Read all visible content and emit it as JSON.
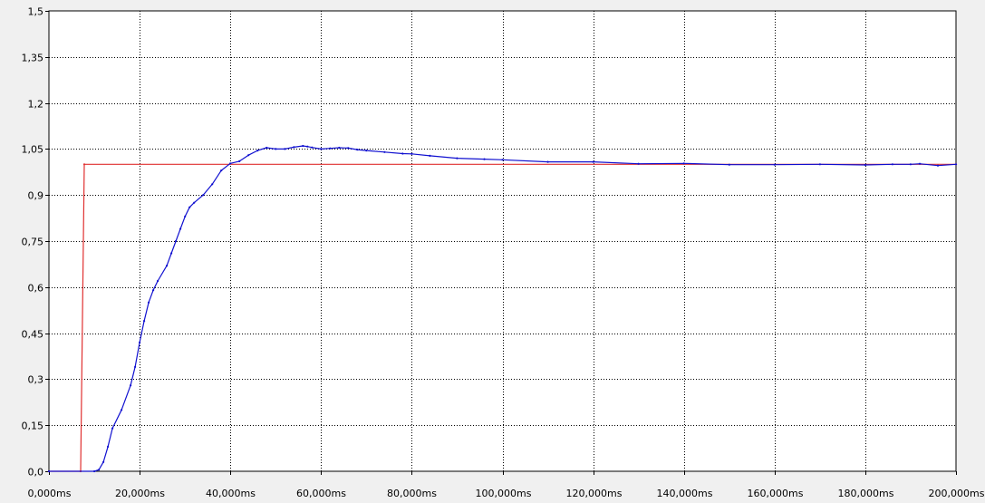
{
  "chart_data": {
    "type": "line",
    "title": "",
    "xlabel": "",
    "ylabel": "",
    "xlim": [
      0,
      200
    ],
    "ylim": [
      0,
      1.5
    ],
    "grid": true,
    "x_tick_labels": [
      "0,000ms",
      "20,000ms",
      "40,000ms",
      "60,000ms",
      "80,000ms",
      "100,000ms",
      "120,000ms",
      "140,000ms",
      "160,000ms",
      "180,000ms",
      "200,000ms"
    ],
    "x_tick_values": [
      0,
      20,
      40,
      60,
      80,
      100,
      120,
      140,
      160,
      180,
      200
    ],
    "y_tick_labels": [
      "0,0",
      "0,15",
      "0,3",
      "0,45",
      "0,6",
      "0,75",
      "0,9",
      "1,05",
      "1,2",
      "1,35",
      "1,5"
    ],
    "y_tick_values": [
      0,
      0.15,
      0.3,
      0.45,
      0.6,
      0.75,
      0.9,
      1.05,
      1.2,
      1.35,
      1.5
    ],
    "series": [
      {
        "color": "#e03030",
        "x": [
          0,
          7,
          7.8,
          200
        ],
        "y": [
          0,
          0,
          1.0,
          1.0
        ]
      },
      {
        "color": "#1010d0",
        "x": [
          0,
          10,
          11,
          12,
          13,
          14,
          16,
          18,
          19,
          20,
          21,
          22,
          23,
          24,
          26,
          27,
          28,
          29,
          30,
          31,
          32,
          34,
          36,
          38,
          40,
          42,
          44,
          46,
          48,
          50,
          52,
          54,
          56,
          57,
          58,
          60,
          62,
          64,
          66,
          68,
          70,
          74,
          78,
          80,
          84,
          90,
          96,
          100,
          110,
          120,
          130,
          140,
          150,
          160,
          170,
          180,
          186,
          190,
          192,
          196,
          200
        ],
        "y": [
          0,
          0,
          0.005,
          0.03,
          0.08,
          0.14,
          0.2,
          0.28,
          0.34,
          0.42,
          0.49,
          0.55,
          0.59,
          0.62,
          0.67,
          0.71,
          0.75,
          0.79,
          0.83,
          0.86,
          0.875,
          0.9,
          0.935,
          0.98,
          1.003,
          1.01,
          1.03,
          1.045,
          1.054,
          1.05,
          1.05,
          1.056,
          1.06,
          1.058,
          1.055,
          1.05,
          1.052,
          1.054,
          1.053,
          1.048,
          1.045,
          1.04,
          1.035,
          1.034,
          1.028,
          1.02,
          1.017,
          1.015,
          1.008,
          1.008,
          1.002,
          1.003,
          0.999,
          0.999,
          1.0,
          0.998,
          1.0,
          1.0,
          1.002,
          0.996,
          1.0
        ]
      }
    ]
  }
}
